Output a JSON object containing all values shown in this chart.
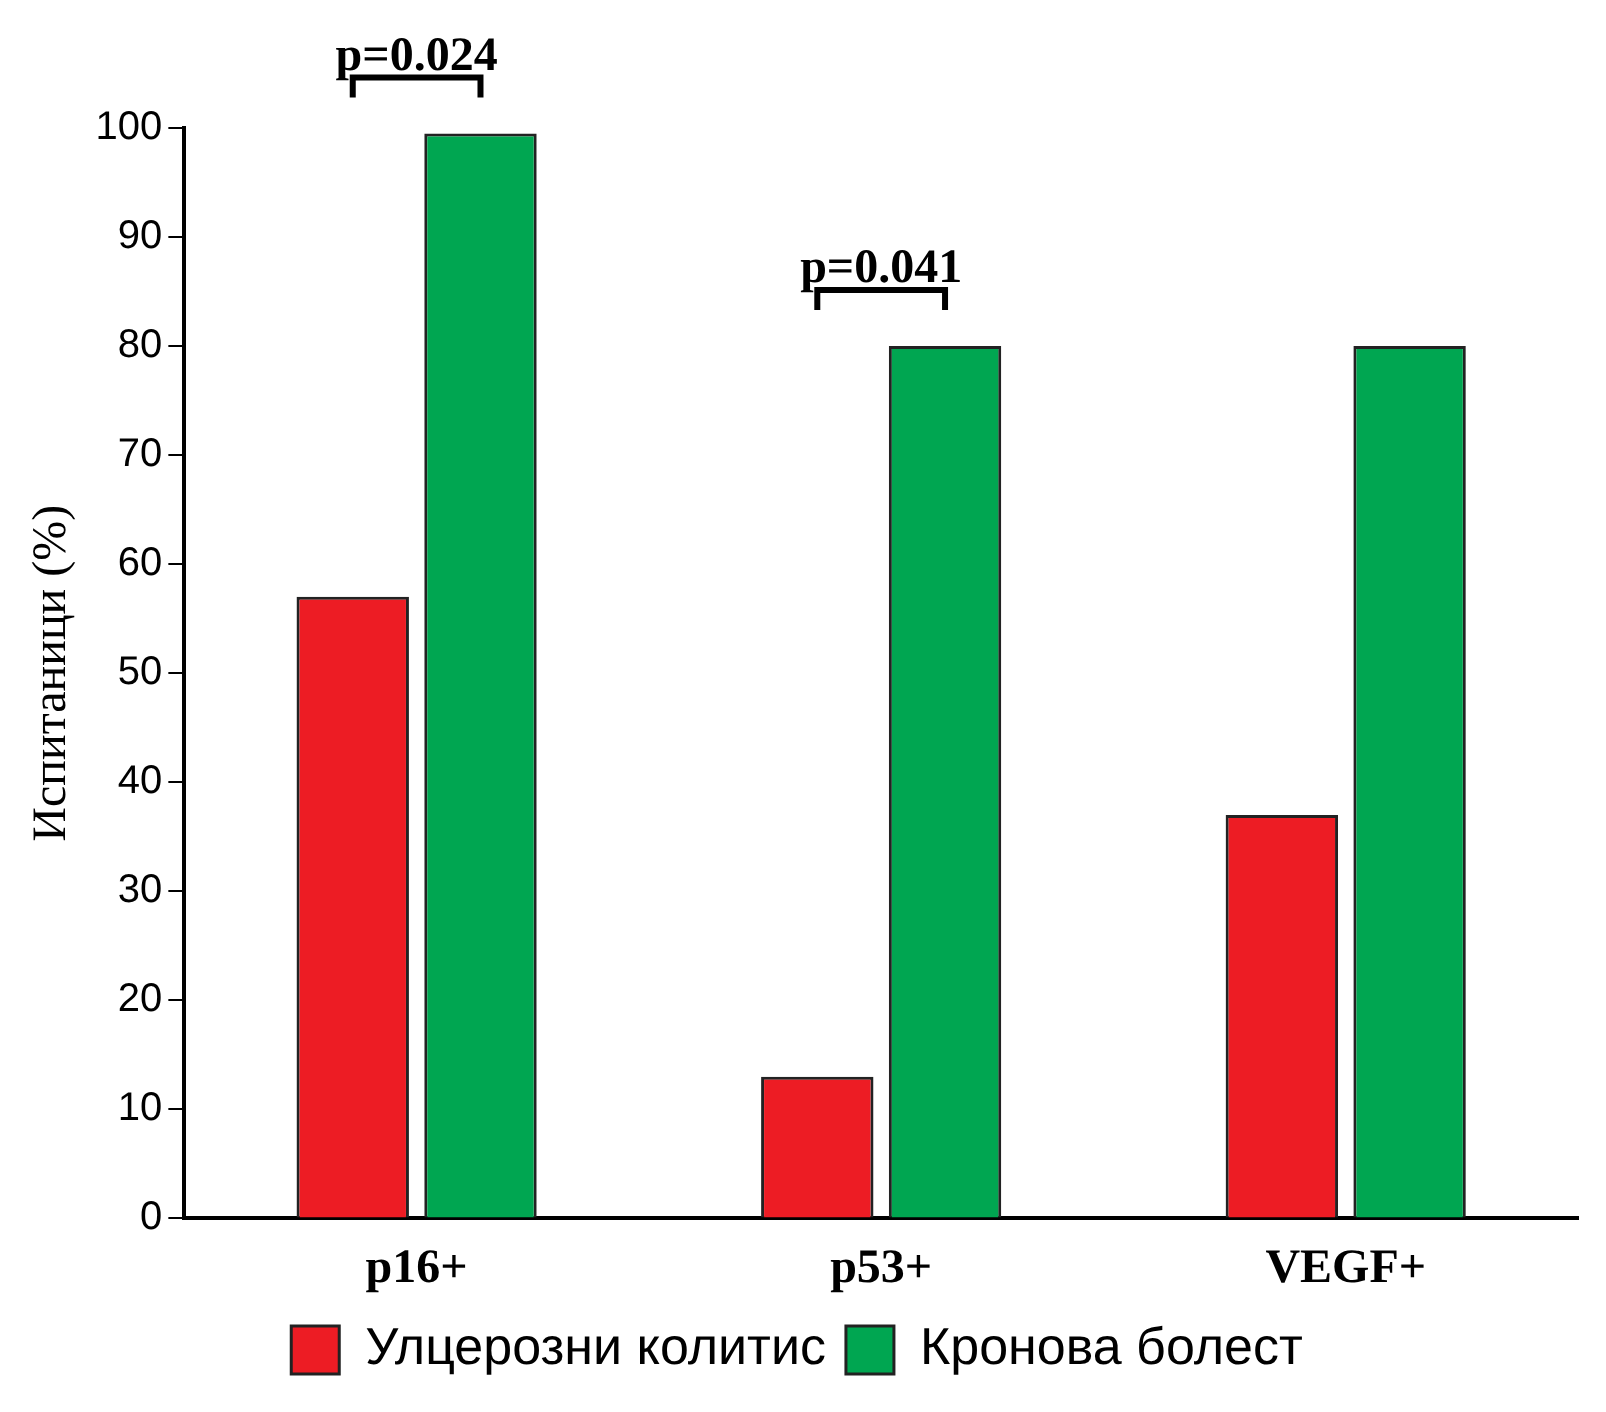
{
  "chart_data": {
    "type": "bar",
    "ylabel": "Испитаници (%)",
    "categories": [
      "p16+",
      "p53+",
      "VEGF+"
    ],
    "series": [
      {
        "name": "Улцерозни колитис",
        "color": "#ed1c24",
        "values": [
          57,
          13,
          37
        ]
      },
      {
        "name": "Кронова болест",
        "color": "#00a651",
        "values": [
          99.5,
          80,
          80
        ]
      }
    ],
    "ylim": [
      0,
      100
    ],
    "yticks": [
      0,
      10,
      20,
      30,
      40,
      50,
      60,
      70,
      80,
      90,
      100
    ],
    "grid": false,
    "legend": "bottom",
    "annotations": [
      "p=0.024",
      "p=0.041"
    ]
  }
}
